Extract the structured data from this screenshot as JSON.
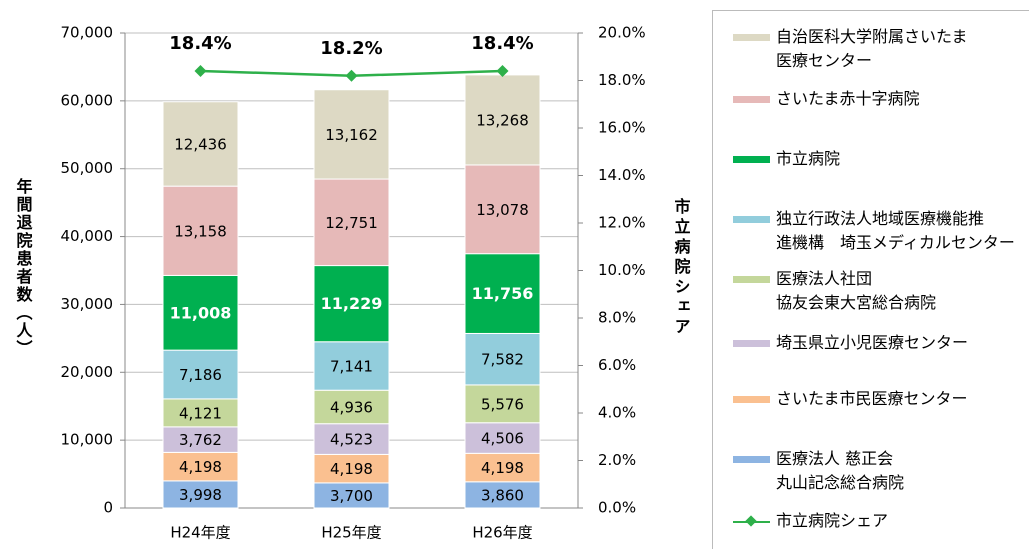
{
  "chart_data": {
    "type": "bar",
    "y_label": "年間退院患者数（人）",
    "y2_label": "市立病院シェア",
    "categories": [
      "H24年度",
      "H25年度",
      "H26年度"
    ],
    "stacked": true,
    "ylim": [
      0,
      70000
    ],
    "yticks": [
      0,
      {
        "value": 10000,
        "label": "10,000"
      },
      {
        "value": 20000,
        "label": "20,000"
      },
      {
        "value": 30000,
        "label": "30,000"
      },
      {
        "value": 40000,
        "label": "40,000"
      },
      {
        "value": 50000,
        "label": "50,000"
      },
      {
        "value": 60000,
        "label": "60,000"
      },
      {
        "value": 70000,
        "label": "70,000"
      }
    ],
    "y2lim": [
      0,
      20
    ],
    "y2ticks": [
      {
        "value": 0,
        "label": "0.0%"
      },
      {
        "value": 2,
        "label": "2.0%"
      },
      {
        "value": 4,
        "label": "4.0%"
      },
      {
        "value": 6,
        "label": "6.0%"
      },
      {
        "value": 8,
        "label": "8.0%"
      },
      {
        "value": 10,
        "label": "10.0%"
      },
      {
        "value": 12,
        "label": "12.0%"
      },
      {
        "value": 14,
        "label": "14.0%"
      },
      {
        "value": 16,
        "label": "16.0%"
      },
      {
        "value": 18,
        "label": "18.0%"
      },
      {
        "value": 20,
        "label": "20.0%"
      }
    ],
    "grid": true,
    "series": [
      {
        "name": "医療法人 慈正会\n丸山記念総合病院",
        "color": "#8db4e2",
        "values": [
          3998,
          3700,
          3860
        ],
        "value_labels": [
          "3,998",
          "3,700",
          "3,860"
        ]
      },
      {
        "name": "さいたま市民医療センター",
        "color": "#fac090",
        "values": [
          4198,
          4198,
          4198
        ],
        "value_labels": [
          "4,198",
          "4,198",
          "4,198"
        ]
      },
      {
        "name": "埼玉県立小児医療センター",
        "color": "#ccc0da",
        "values": [
          3762,
          4523,
          4506
        ],
        "value_labels": [
          "3,762",
          "4,523",
          "4,506"
        ]
      },
      {
        "name": "医療法人社団\n協友会東大宮総合病院",
        "color": "#c4d79b",
        "values": [
          4121,
          4936,
          5576
        ],
        "value_labels": [
          "4,121",
          "4,936",
          "5,576"
        ]
      },
      {
        "name": "独立行政法人地域医療機能推\n進機構　埼玉メディカルセンター",
        "color": "#92cddc",
        "values": [
          7186,
          7141,
          7582
        ],
        "value_labels": [
          "7,186",
          "7,141",
          "7,582"
        ]
      },
      {
        "name": "市立病院",
        "color": "#00b050",
        "values": [
          11008,
          11229,
          11756
        ],
        "value_labels": [
          "11,008",
          "11,229",
          "11,756"
        ]
      },
      {
        "name": "さいたま赤十字病院",
        "color": "#e6b9b8",
        "values": [
          13158,
          12751,
          13078
        ],
        "value_labels": [
          "13,158",
          "12,751",
          "13,078"
        ]
      },
      {
        "name": "自治医科大学附属さいたま\n医療センター",
        "color": "#ddd9c4",
        "values": [
          12436,
          13162,
          13268
        ],
        "value_labels": [
          "12,436",
          "13,162",
          "13,268"
        ]
      },
      {
        "name": "市立病院シェア",
        "type": "line",
        "axis": "y2",
        "color": "#2eb04a",
        "values": [
          18.4,
          18.2,
          18.4
        ],
        "value_labels": [
          "18.4%",
          "18.2%",
          "18.4%"
        ]
      }
    ]
  }
}
